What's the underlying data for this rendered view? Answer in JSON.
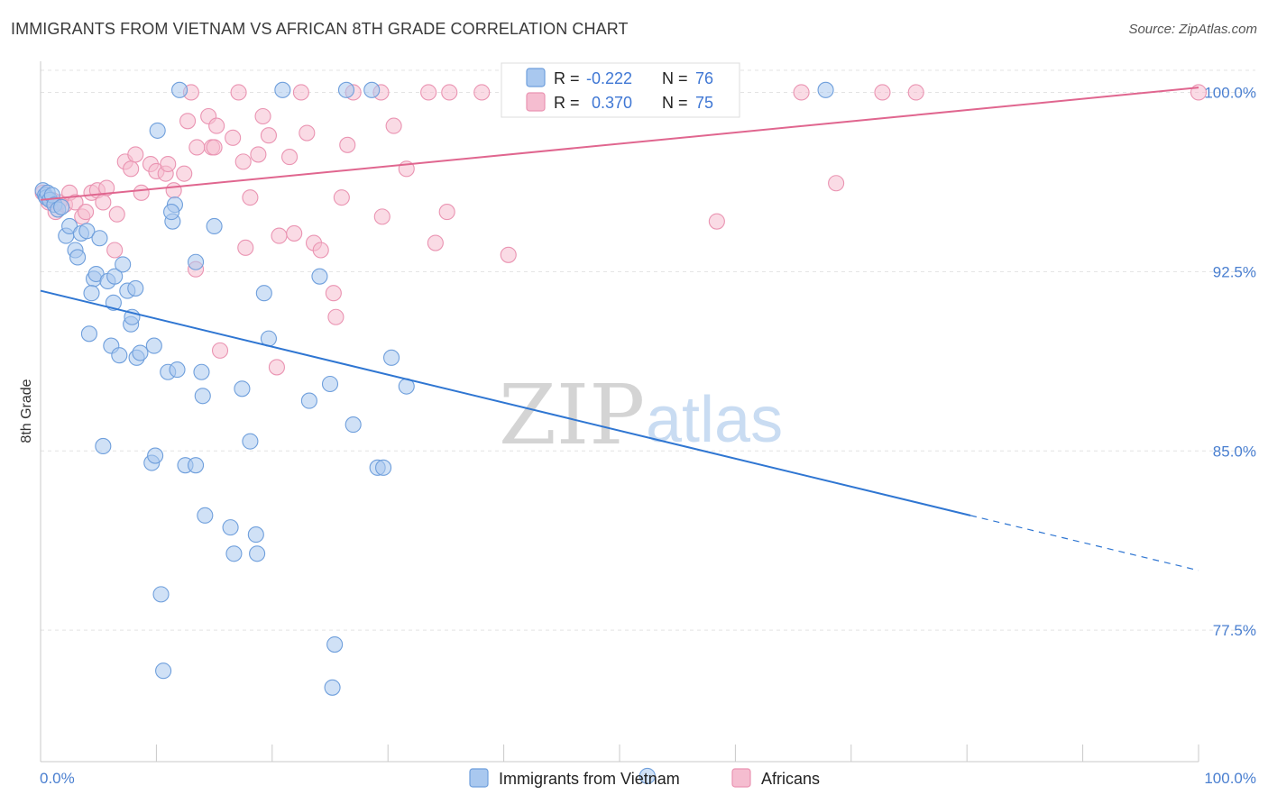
{
  "title": "IMMIGRANTS FROM VIETNAM VS AFRICAN 8TH GRADE CORRELATION CHART",
  "source": "Source: ZipAtlas.com",
  "watermark": {
    "zip": "ZIP",
    "atlas": "atlas"
  },
  "colors": {
    "blue_fill": "#a9c8ef",
    "blue_stroke": "#6f9fdc",
    "blue_line": "#2f76d2",
    "pink_fill": "#f5bdd0",
    "pink_stroke": "#ea94b2",
    "pink_line": "#e0668f",
    "tick_text": "#4a7fd0",
    "grid": "#e3e3e3"
  },
  "legend": {
    "rows": [
      {
        "r_label": "R =",
        "r_value": "-0.222",
        "n_label": "N =",
        "n_value": "76"
      },
      {
        "r_label": "R =",
        "r_value": "0.370",
        "n_label": "N =",
        "n_value": "75"
      }
    ]
  },
  "bottom_legend": [
    {
      "label": "Immigrants from Vietnam"
    },
    {
      "label": "Africans"
    }
  ],
  "chart_data": {
    "type": "scatter",
    "title": "IMMIGRANTS FROM VIETNAM VS AFRICAN 8TH GRADE CORRELATION CHART",
    "xlabel": "",
    "ylabel": "8th Grade",
    "xlim": [
      0,
      100
    ],
    "ylim": [
      72.0,
      101.3
    ],
    "x_tick_labels": [
      "0.0%",
      "100.0%"
    ],
    "y_ticks": [
      {
        "value": 100.0,
        "label": "100.0%"
      },
      {
        "value": 92.5,
        "label": "92.5%"
      },
      {
        "value": 85.0,
        "label": "85.0%"
      },
      {
        "value": 77.5,
        "label": "77.5%"
      }
    ],
    "grid": true,
    "legend_position": "top-center",
    "series": [
      {
        "name": "Immigrants from Vietnam",
        "color": "#a9c8ef",
        "trend": {
          "x_start": 0,
          "y_start": 91.7,
          "x_solid_end": 80.3,
          "y_solid_end": 82.3,
          "x_end": 100,
          "y_end": 80.0
        },
        "points": [
          [
            0.2,
            95.9
          ],
          [
            0.4,
            95.7
          ],
          [
            0.5,
            95.6
          ],
          [
            0.6,
            95.8
          ],
          [
            0.8,
            95.5
          ],
          [
            1.0,
            95.7
          ],
          [
            1.2,
            95.3
          ],
          [
            1.5,
            95.1
          ],
          [
            1.8,
            95.2
          ],
          [
            2.2,
            94.0
          ],
          [
            2.5,
            94.4
          ],
          [
            3.0,
            93.4
          ],
          [
            3.5,
            94.1
          ],
          [
            4.0,
            94.2
          ],
          [
            5.1,
            93.9
          ],
          [
            3.2,
            93.1
          ],
          [
            4.6,
            92.2
          ],
          [
            4.8,
            92.4
          ],
          [
            5.8,
            92.1
          ],
          [
            6.4,
            92.3
          ],
          [
            7.1,
            92.8
          ],
          [
            7.5,
            91.7
          ],
          [
            8.2,
            91.8
          ],
          [
            4.4,
            91.6
          ],
          [
            6.3,
            91.2
          ],
          [
            7.8,
            90.3
          ],
          [
            7.9,
            90.6
          ],
          [
            4.2,
            89.9
          ],
          [
            6.1,
            89.4
          ],
          [
            6.8,
            89.0
          ],
          [
            8.3,
            88.9
          ],
          [
            8.6,
            89.1
          ],
          [
            9.8,
            89.4
          ],
          [
            11.0,
            88.3
          ],
          [
            11.8,
            88.4
          ],
          [
            13.9,
            88.3
          ],
          [
            14.0,
            87.3
          ],
          [
            17.4,
            87.6
          ],
          [
            10.1,
            98.4
          ],
          [
            11.4,
            94.6
          ],
          [
            11.6,
            95.3
          ],
          [
            11.3,
            95.0
          ],
          [
            15.0,
            94.4
          ],
          [
            13.4,
            92.9
          ],
          [
            19.3,
            91.6
          ],
          [
            19.7,
            89.7
          ],
          [
            24.1,
            92.3
          ],
          [
            25.0,
            87.8
          ],
          [
            23.2,
            87.1
          ],
          [
            27.0,
            86.1
          ],
          [
            30.3,
            88.9
          ],
          [
            31.6,
            87.7
          ],
          [
            18.1,
            85.4
          ],
          [
            5.4,
            85.2
          ],
          [
            9.6,
            84.5
          ],
          [
            9.9,
            84.8
          ],
          [
            12.5,
            84.4
          ],
          [
            13.4,
            84.4
          ],
          [
            29.1,
            84.3
          ],
          [
            29.6,
            84.3
          ],
          [
            14.2,
            82.3
          ],
          [
            16.4,
            81.8
          ],
          [
            18.6,
            81.5
          ],
          [
            16.7,
            80.7
          ],
          [
            18.7,
            80.7
          ],
          [
            10.4,
            79.0
          ],
          [
            10.6,
            75.8
          ],
          [
            25.4,
            76.9
          ],
          [
            25.2,
            75.1
          ],
          [
            12.0,
            100.1
          ],
          [
            20.9,
            100.1
          ],
          [
            26.4,
            100.1
          ],
          [
            28.6,
            100.1
          ],
          [
            43.3,
            100.1
          ],
          [
            67.8,
            100.1
          ],
          [
            52.4,
            71.4
          ]
        ]
      },
      {
        "name": "Africans",
        "color": "#f5bdd0",
        "trend": {
          "x_start": 0,
          "y_start": 95.5,
          "x_end": 100,
          "y_end": 100.2
        },
        "points": [
          [
            0.2,
            95.8
          ],
          [
            0.5,
            95.6
          ],
          [
            0.7,
            95.4
          ],
          [
            1.0,
            95.5
          ],
          [
            1.3,
            95.0
          ],
          [
            1.6,
            95.4
          ],
          [
            2.1,
            95.3
          ],
          [
            2.5,
            95.8
          ],
          [
            3.0,
            95.4
          ],
          [
            3.6,
            94.8
          ],
          [
            3.9,
            95.0
          ],
          [
            4.4,
            95.8
          ],
          [
            4.9,
            95.9
          ],
          [
            5.4,
            95.4
          ],
          [
            5.7,
            96.0
          ],
          [
            6.6,
            94.9
          ],
          [
            6.4,
            93.4
          ],
          [
            7.3,
            97.1
          ],
          [
            7.8,
            96.8
          ],
          [
            8.2,
            97.4
          ],
          [
            8.7,
            95.8
          ],
          [
            9.5,
            97.0
          ],
          [
            10.0,
            96.7
          ],
          [
            10.8,
            96.6
          ],
          [
            11.0,
            97.0
          ],
          [
            11.5,
            95.9
          ],
          [
            12.4,
            96.6
          ],
          [
            12.7,
            98.8
          ],
          [
            13.5,
            97.7
          ],
          [
            14.5,
            99.0
          ],
          [
            14.8,
            97.7
          ],
          [
            15.2,
            98.6
          ],
          [
            15.0,
            97.7
          ],
          [
            16.6,
            98.1
          ],
          [
            17.5,
            97.1
          ],
          [
            18.1,
            95.6
          ],
          [
            18.8,
            97.4
          ],
          [
            19.2,
            99.0
          ],
          [
            19.7,
            98.2
          ],
          [
            20.6,
            94.0
          ],
          [
            21.5,
            97.3
          ],
          [
            21.9,
            94.1
          ],
          [
            23.0,
            98.3
          ],
          [
            23.6,
            93.7
          ],
          [
            24.2,
            93.4
          ],
          [
            25.3,
            91.6
          ],
          [
            25.5,
            90.6
          ],
          [
            26.0,
            95.6
          ],
          [
            26.5,
            97.8
          ],
          [
            29.5,
            94.8
          ],
          [
            30.5,
            98.6
          ],
          [
            31.6,
            96.8
          ],
          [
            34.1,
            93.7
          ],
          [
            35.1,
            95.0
          ],
          [
            40.4,
            93.2
          ],
          [
            17.7,
            93.5
          ],
          [
            13.4,
            92.6
          ],
          [
            15.5,
            89.2
          ],
          [
            20.4,
            88.5
          ],
          [
            58.4,
            94.6
          ],
          [
            68.7,
            96.2
          ],
          [
            13.0,
            100.0
          ],
          [
            17.1,
            100.0
          ],
          [
            22.5,
            100.0
          ],
          [
            27.0,
            100.0
          ],
          [
            29.4,
            100.0
          ],
          [
            33.5,
            100.0
          ],
          [
            35.3,
            100.0
          ],
          [
            38.1,
            100.0
          ],
          [
            42.6,
            100.0
          ],
          [
            55.6,
            100.0
          ],
          [
            65.7,
            100.0
          ],
          [
            72.7,
            100.0
          ],
          [
            75.6,
            100.0
          ],
          [
            100.0,
            100.0
          ]
        ]
      }
    ]
  }
}
